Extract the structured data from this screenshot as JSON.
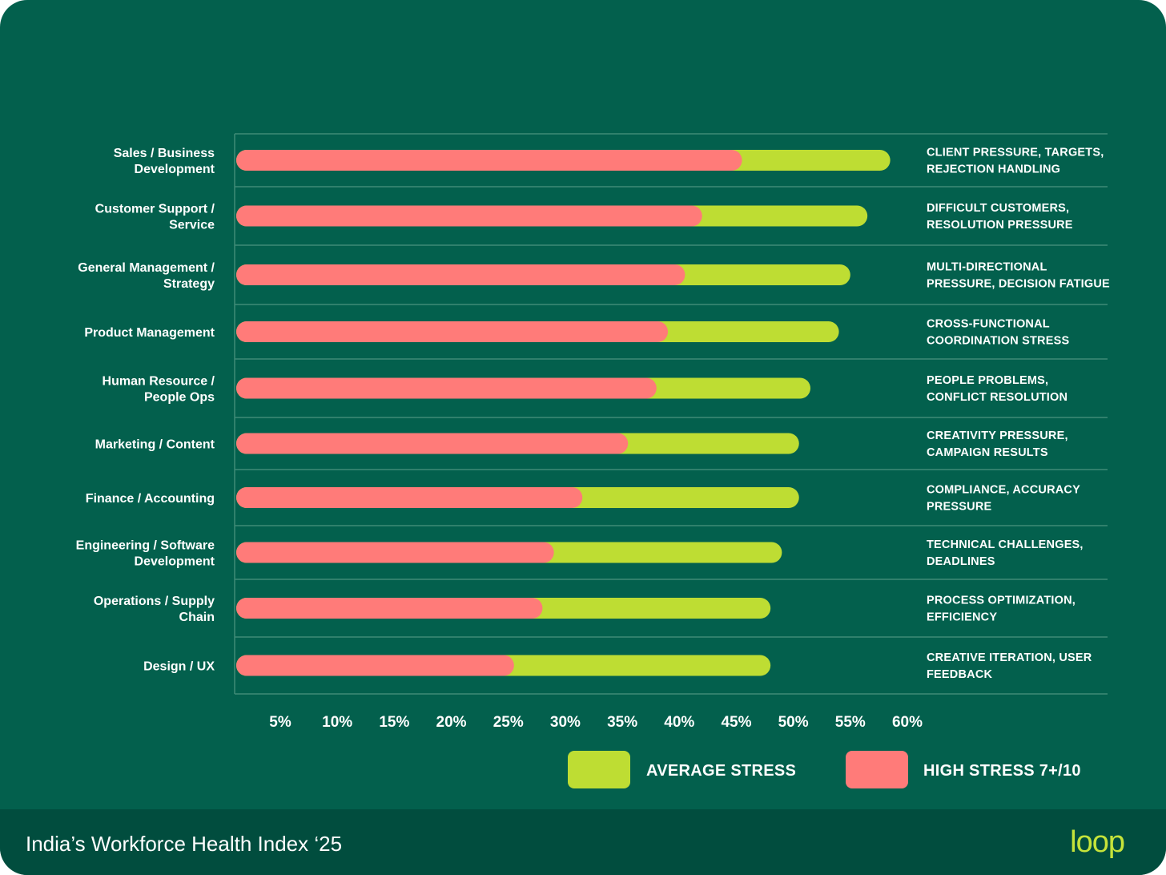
{
  "chart_data": {
    "type": "bar",
    "orientation": "horizontal",
    "stacked": "overlay",
    "categories": [
      "Sales / Business\nDevelopment",
      "Customer Support /\nService",
      "General Management /\nStrategy",
      "Product Management",
      "Human Resource /\nPeople Ops",
      "Marketing / Content",
      "Finance / Accounting",
      "Engineering / Software\nDevelopment",
      "Operations / Supply\nChain",
      "Design / UX"
    ],
    "series": [
      {
        "name": "AVERAGE STRESS",
        "color": "#bedd33",
        "values": [
          58.5,
          56.5,
          55,
          54,
          51.5,
          50.5,
          50.5,
          49,
          48,
          48
        ]
      },
      {
        "name": "HIGH STRESS 7+/10",
        "color": "#ff7b79",
        "values": [
          45.5,
          42,
          40.5,
          39,
          38,
          35.5,
          31.5,
          29,
          28,
          25.5
        ]
      }
    ],
    "drivers": [
      "CLIENT PRESSURE, TARGETS,\nREJECTION HANDLING",
      "DIFFICULT CUSTOMERS,\nRESOLUTION PRESSURE",
      "MULTI-DIRECTIONAL\nPRESSURE, DECISION FATIGUE",
      "CROSS-FUNCTIONAL\nCOORDINATION STRESS",
      "PEOPLE PROBLEMS,\nCONFLICT RESOLUTION",
      "CREATIVITY PRESSURE,\nCAMPAIGN RESULTS",
      "COMPLIANCE, ACCURACY\nPRESSURE",
      "TECHNICAL CHALLENGES,\nDEADLINES",
      "PROCESS OPTIMIZATION,\nEFFICIENCY",
      "CREATIVE ITERATION, USER\nFEEDBACK"
    ],
    "x_ticks": [
      5,
      10,
      15,
      20,
      25,
      30,
      35,
      40,
      45,
      50,
      55,
      60
    ],
    "x_tick_labels": [
      "5%",
      "10%",
      "15%",
      "20%",
      "25%",
      "30%",
      "35%",
      "40%",
      "45%",
      "50%",
      "55%",
      "60%"
    ],
    "xlim": [
      1,
      60
    ],
    "legend": "bottom-right",
    "grid": false
  },
  "footer": {
    "title": "India’s Workforce Health Index ‘25",
    "brand": "loop"
  },
  "colors": {
    "background": "#03604d",
    "footer_background": "#014d3e",
    "gridline": "#3f8a77",
    "average": "#bedd33",
    "high": "#ff7b79"
  }
}
